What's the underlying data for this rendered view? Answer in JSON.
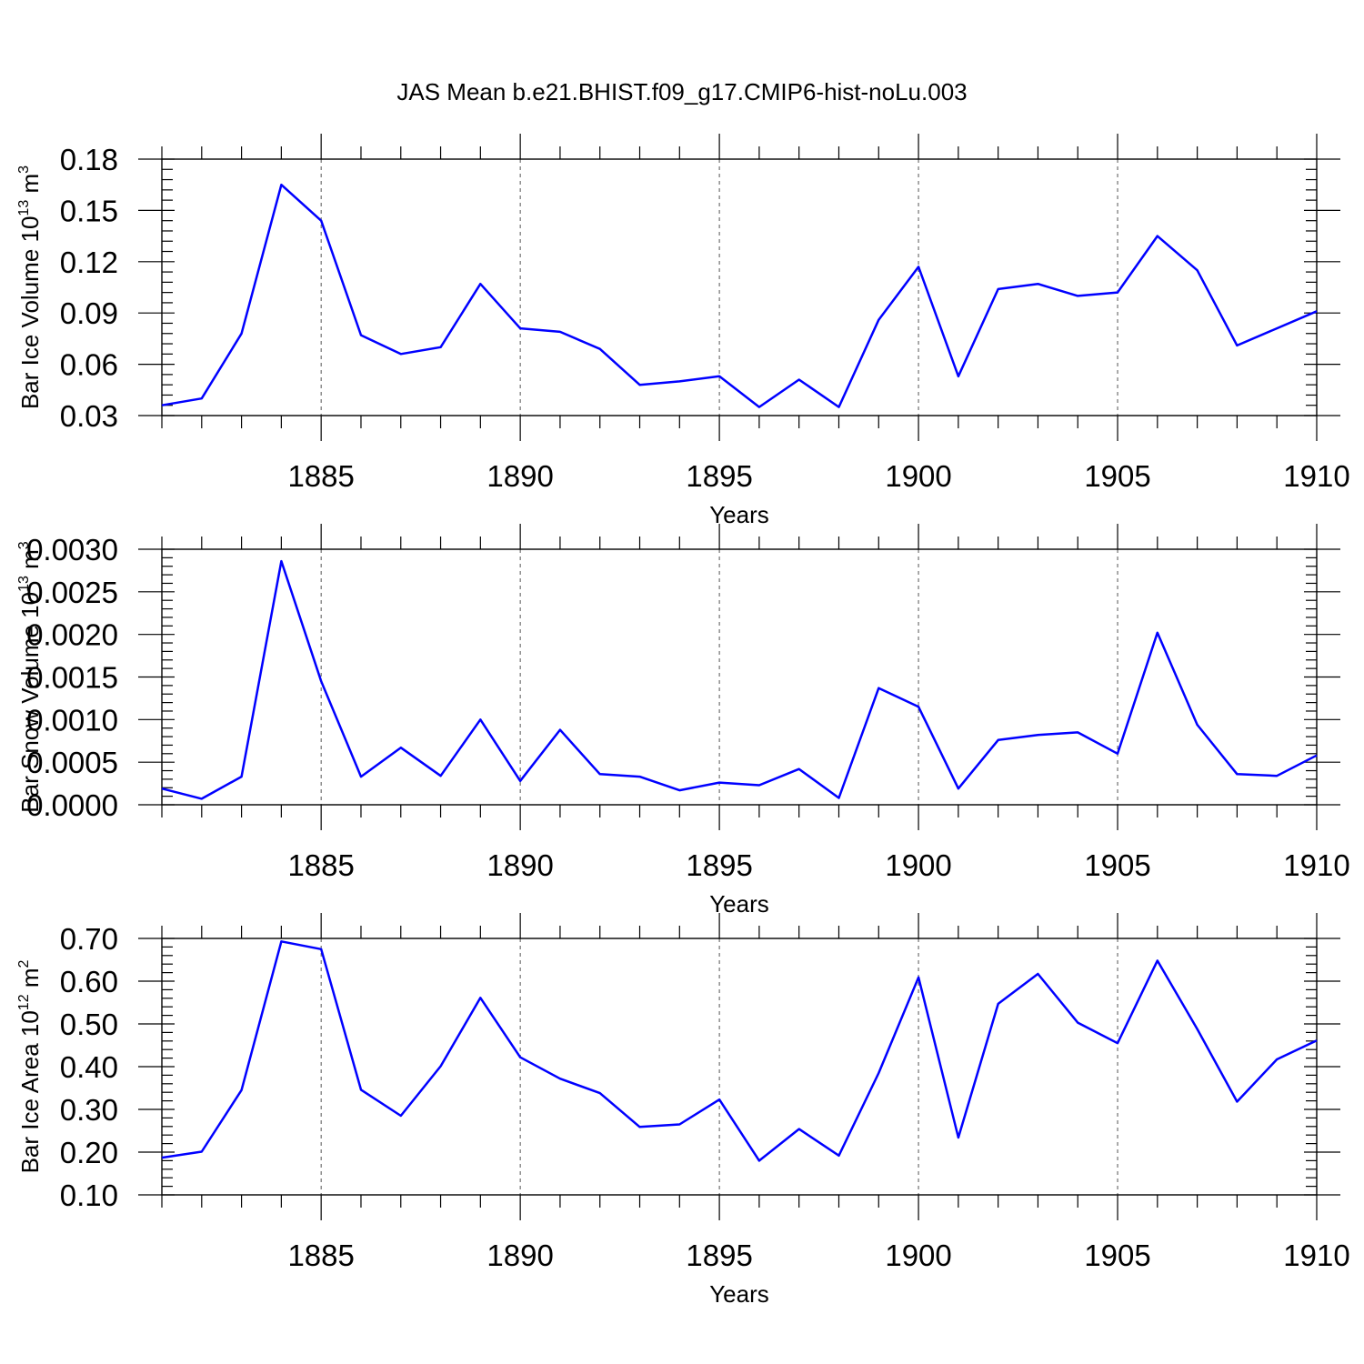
{
  "title": "JAS Mean b.e21.BHIST.f09_g17.CMIP6-hist-noLu.003",
  "chart_data": [
    {
      "type": "line",
      "ylabel": "Bar Ice Volume 10",
      "ylabel_sup": "13",
      "ylabel_unit": " m",
      "ylabel_unit_sup": "3",
      "xlabel": "Years",
      "xlim": [
        1881,
        1910
      ],
      "ylim": [
        0.03,
        0.18
      ],
      "yticks": [
        0.03,
        0.06,
        0.09,
        0.12,
        0.15,
        0.18
      ],
      "ytick_labels": [
        "0.03",
        "0.06",
        "0.09",
        "0.12",
        "0.15",
        "0.18"
      ],
      "xticks": [
        1885,
        1890,
        1895,
        1900,
        1905,
        1910
      ],
      "xtick_labels": [
        "1885",
        "1890",
        "1895",
        "1900",
        "1905",
        "1910"
      ],
      "grid": "vertical dashed at major x ticks",
      "series": [
        {
          "color": "#0000ff",
          "x": [
            1881,
            1882,
            1883,
            1884,
            1885,
            1886,
            1887,
            1888,
            1889,
            1890,
            1891,
            1892,
            1893,
            1894,
            1895,
            1896,
            1897,
            1898,
            1899,
            1900,
            1901,
            1902,
            1903,
            1904,
            1905,
            1906,
            1907,
            1908,
            1909,
            1910
          ],
          "y": [
            0.036,
            0.04,
            0.078,
            0.165,
            0.144,
            0.077,
            0.066,
            0.07,
            0.107,
            0.081,
            0.079,
            0.069,
            0.048,
            0.05,
            0.053,
            0.035,
            0.051,
            0.035,
            0.086,
            0.117,
            0.053,
            0.104,
            0.107,
            0.1,
            0.102,
            0.135,
            0.115,
            0.071,
            0.081,
            0.091
          ]
        }
      ]
    },
    {
      "type": "line",
      "ylabel": "Bar Snow Volume 10",
      "ylabel_sup": "13",
      "ylabel_unit": " m",
      "ylabel_unit_sup": "3",
      "xlabel": "Years",
      "xlim": [
        1881,
        1910
      ],
      "ylim": [
        0.0,
        0.003
      ],
      "yticks": [
        0.0,
        0.0005,
        0.001,
        0.0015,
        0.002,
        0.0025,
        0.003
      ],
      "ytick_labels": [
        "0.0000",
        "0.0005",
        "0.0010",
        "0.0015",
        "0.0020",
        "0.0025",
        "0.0030"
      ],
      "xticks": [
        1885,
        1890,
        1895,
        1900,
        1905,
        1910
      ],
      "xtick_labels": [
        "1885",
        "1890",
        "1895",
        "1900",
        "1905",
        "1910"
      ],
      "grid": "vertical dashed at major x ticks",
      "series": [
        {
          "color": "#0000ff",
          "x": [
            1881,
            1882,
            1883,
            1884,
            1885,
            1886,
            1887,
            1888,
            1889,
            1890,
            1891,
            1892,
            1893,
            1894,
            1895,
            1896,
            1897,
            1898,
            1899,
            1900,
            1901,
            1902,
            1903,
            1904,
            1905,
            1906,
            1907,
            1908,
            1909,
            1910
          ],
          "y": [
            0.00019,
            7e-05,
            0.00033,
            0.00286,
            0.00145,
            0.00033,
            0.00067,
            0.00034,
            0.001,
            0.00028,
            0.00088,
            0.00036,
            0.00033,
            0.00017,
            0.00026,
            0.00023,
            0.00042,
            8e-05,
            0.00137,
            0.00115,
            0.00019,
            0.00076,
            0.00082,
            0.00085,
            0.0006,
            0.00202,
            0.00094,
            0.00036,
            0.00034,
            0.00058
          ]
        }
      ]
    },
    {
      "type": "line",
      "ylabel": "Bar Ice Area 10",
      "ylabel_sup": "12",
      "ylabel_unit": " m",
      "ylabel_unit_sup": "2",
      "xlabel": "Years",
      "xlim": [
        1881,
        1910
      ],
      "ylim": [
        0.1,
        0.7
      ],
      "yticks": [
        0.1,
        0.2,
        0.3,
        0.4,
        0.5,
        0.6,
        0.7
      ],
      "ytick_labels": [
        "0.10",
        "0.20",
        "0.30",
        "0.40",
        "0.50",
        "0.60",
        "0.70"
      ],
      "xticks": [
        1885,
        1890,
        1895,
        1900,
        1905,
        1910
      ],
      "xtick_labels": [
        "1885",
        "1890",
        "1895",
        "1900",
        "1905",
        "1910"
      ],
      "grid": "vertical dashed at major x ticks",
      "series": [
        {
          "color": "#0000ff",
          "x": [
            1881,
            1882,
            1883,
            1884,
            1885,
            1886,
            1887,
            1888,
            1889,
            1890,
            1891,
            1892,
            1893,
            1894,
            1895,
            1896,
            1897,
            1898,
            1899,
            1900,
            1901,
            1902,
            1903,
            1904,
            1905,
            1906,
            1907,
            1908,
            1909,
            1910
          ],
          "y": [
            0.187,
            0.201,
            0.345,
            0.693,
            0.675,
            0.346,
            0.285,
            0.401,
            0.561,
            0.422,
            0.372,
            0.338,
            0.259,
            0.265,
            0.323,
            0.18,
            0.254,
            0.192,
            0.385,
            0.609,
            0.234,
            0.547,
            0.617,
            0.503,
            0.455,
            0.648,
            0.488,
            0.318,
            0.417,
            0.461
          ]
        }
      ]
    }
  ]
}
